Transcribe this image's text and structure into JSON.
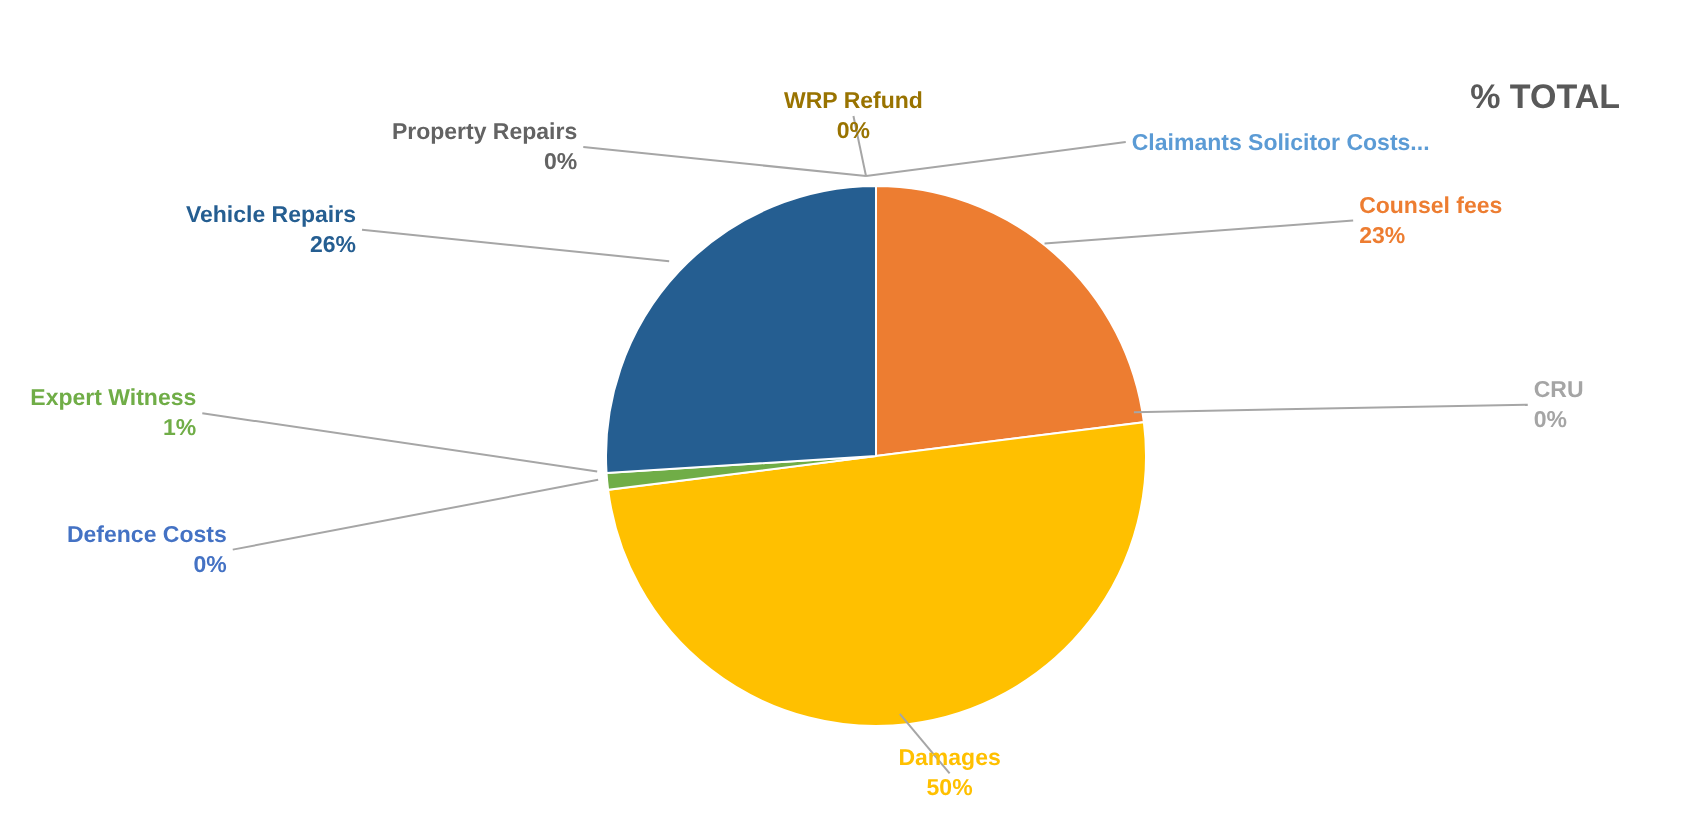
{
  "chart_data": {
    "type": "pie",
    "title": "% TOTAL",
    "categories": [
      "Claimants Solicitor Costs...",
      "Counsel fees",
      "CRU",
      "Damages",
      "Defence Costs",
      "Expert Witness",
      "Vehicle Repairs",
      "Property Repairs",
      "WRP Refund"
    ],
    "values": [
      0,
      23,
      0,
      50,
      0,
      1,
      26,
      0,
      0
    ],
    "value_labels": [
      null,
      "23%",
      "0%",
      "50%",
      "0%",
      "1%",
      "26%",
      "0%",
      "0%"
    ],
    "colors": [
      "#5b9bd5",
      "#ed7d31",
      "#a5a5a5",
      "#ffc000",
      "#4472c4",
      "#70ad47",
      "#255e91",
      "#636363",
      "#997300"
    ]
  }
}
